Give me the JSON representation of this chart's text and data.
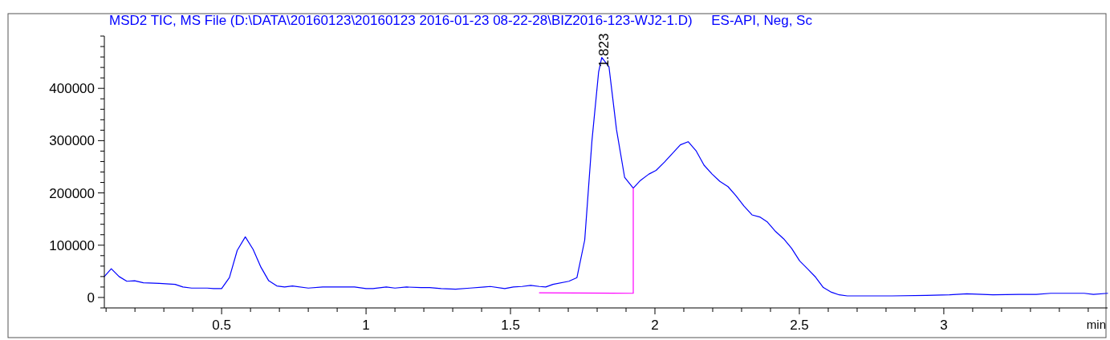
{
  "chart_data": {
    "type": "line",
    "title": "MSD2 TIC, MS File (D:\\DATA\\20160123\\20160123 2016-01-23 08-22-28\\BIZ2016-123-WJ2-1.D)     ES-API, Neg, Sc",
    "xlabel": "min",
    "series": [
      {
        "color": "#0000ff",
        "x": [
          0.094,
          0.118,
          0.145,
          0.172,
          0.199,
          0.229,
          0.284,
          0.339,
          0.366,
          0.396,
          0.45,
          0.472,
          0.5,
          0.527,
          0.554,
          0.582,
          0.609,
          0.636,
          0.663,
          0.691,
          0.718,
          0.745,
          0.8,
          0.85,
          0.96,
          1.0,
          1.024,
          1.07,
          1.1,
          1.14,
          1.19,
          1.22,
          1.26,
          1.31,
          1.36,
          1.41,
          1.43,
          1.48,
          1.51,
          1.54,
          1.57,
          1.6,
          1.622,
          1.647,
          1.702,
          1.73,
          1.757,
          1.782,
          1.805,
          1.816,
          1.841,
          1.867,
          1.895,
          1.925,
          1.95,
          1.979,
          2.004,
          2.033,
          2.088,
          2.115,
          2.142,
          2.17,
          2.198,
          2.225,
          2.253,
          2.28,
          2.308,
          2.336,
          2.363,
          2.388,
          2.418,
          2.446,
          2.473,
          2.501,
          2.528,
          2.556,
          2.583,
          2.611,
          2.638,
          2.666,
          2.693,
          2.82,
          2.94,
          3.02,
          3.08,
          3.17,
          3.26,
          3.32,
          3.37,
          3.486,
          3.518,
          3.567
        ],
        "values": [
          40000,
          55000,
          40000,
          31000,
          32000,
          28000,
          27000,
          25000,
          20000,
          18000,
          18000,
          17000,
          17000,
          38000,
          90000,
          116000,
          92000,
          58000,
          32000,
          22000,
          20000,
          22000,
          18000,
          20000,
          20000,
          17000,
          17000,
          20000,
          18000,
          20000,
          19000,
          19000,
          17000,
          16000,
          18000,
          20000,
          21000,
          17000,
          20000,
          21000,
          23000,
          21000,
          20000,
          25000,
          31000,
          38000,
          110000,
          300000,
          431000,
          459000,
          441000,
          321000,
          230000,
          209000,
          224000,
          236000,
          243000,
          259000,
          292000,
          298000,
          281000,
          253000,
          236000,
          222000,
          212000,
          195000,
          175000,
          158000,
          154000,
          145000,
          126000,
          112000,
          94000,
          70000,
          55000,
          39000,
          19000,
          10000,
          5000,
          3000,
          3000,
          3000,
          4000,
          5000,
          7000,
          5000,
          6000,
          6000,
          8000,
          8000,
          6000,
          8000
        ]
      },
      {
        "color": "#ff00ff",
        "x": [
          1.6,
          1.925,
          1.925
        ],
        "values": [
          9000,
          8000,
          209000
        ]
      }
    ],
    "annotations": [
      {
        "text": "1.823",
        "x": 1.823,
        "y": 440000
      }
    ],
    "xlim": [
      0.094,
      3.567
    ],
    "ylim": [
      -20000,
      500000
    ],
    "xticks": [
      {
        "value": 0.1,
        "label": null
      },
      {
        "value": 0.2,
        "label": null
      },
      {
        "value": 0.3,
        "label": null
      },
      {
        "value": 0.4,
        "label": null
      },
      0.5,
      {
        "value": 0.6,
        "label": null
      },
      {
        "value": 0.7,
        "label": null
      },
      {
        "value": 0.8,
        "label": null
      },
      {
        "value": 0.9,
        "label": null
      },
      1,
      {
        "value": 1.1,
        "label": null
      },
      {
        "value": 1.2,
        "label": null
      },
      {
        "value": 1.3,
        "label": null
      },
      {
        "value": 1.4,
        "label": null
      },
      1.5,
      {
        "value": 1.6,
        "label": null
      },
      {
        "value": 1.7,
        "label": null
      },
      {
        "value": 1.8,
        "label": null
      },
      {
        "value": 1.9,
        "label": null
      },
      2,
      {
        "value": 2.1,
        "label": null
      },
      {
        "value": 2.2,
        "label": null
      },
      {
        "value": 2.3,
        "label": null
      },
      {
        "value": 2.4,
        "label": null
      },
      2.5,
      {
        "value": 2.6,
        "label": null
      },
      {
        "value": 2.7,
        "label": null
      },
      {
        "value": 2.8,
        "label": null
      },
      {
        "value": 2.9,
        "label": null
      },
      3,
      {
        "value": 3.1,
        "label": null
      },
      {
        "value": 3.2,
        "label": null
      },
      {
        "value": 3.3,
        "label": null
      },
      {
        "value": 3.4,
        "label": null
      },
      {
        "value": 3.5,
        "label": null
      }
    ],
    "yticks": [
      {
        "value": -20000,
        "label": null
      },
      0,
      {
        "value": 20000,
        "label": null
      },
      {
        "value": 40000,
        "label": null
      },
      {
        "value": 60000,
        "label": null
      },
      {
        "value": 80000,
        "label": null
      },
      100000,
      {
        "value": 120000,
        "label": null
      },
      {
        "value": 140000,
        "label": null
      },
      {
        "value": 160000,
        "label": null
      },
      {
        "value": 180000,
        "label": null
      },
      200000,
      {
        "value": 220000,
        "label": null
      },
      {
        "value": 240000,
        "label": null
      },
      {
        "value": 260000,
        "label": null
      },
      {
        "value": 280000,
        "label": null
      },
      300000,
      {
        "value": 320000,
        "label": null
      },
      {
        "value": 340000,
        "label": null
      },
      {
        "value": 360000,
        "label": null
      },
      {
        "value": 380000,
        "label": null
      },
      400000,
      {
        "value": 420000,
        "label": null
      },
      {
        "value": 440000,
        "label": null
      },
      {
        "value": 460000,
        "label": null
      },
      {
        "value": 480000,
        "label": null
      },
      {
        "value": 500000,
        "label": null
      }
    ],
    "grid": false
  }
}
